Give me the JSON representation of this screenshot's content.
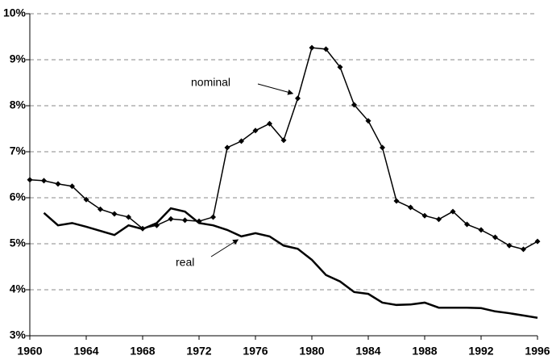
{
  "chart_data": {
    "type": "line",
    "x": [
      1960,
      1961,
      1962,
      1963,
      1964,
      1965,
      1966,
      1967,
      1968,
      1969,
      1970,
      1971,
      1972,
      1973,
      1974,
      1975,
      1976,
      1977,
      1978,
      1979,
      1980,
      1981,
      1982,
      1983,
      1984,
      1985,
      1986,
      1987,
      1988,
      1989,
      1990,
      1991,
      1992,
      1993,
      1994,
      1995,
      1996
    ],
    "series": [
      {
        "name": "nominal",
        "color": "#000000",
        "markers": true,
        "values": [
          6.39,
          6.37,
          6.3,
          6.25,
          5.96,
          5.75,
          5.65,
          5.58,
          5.33,
          5.4,
          5.54,
          5.51,
          5.49,
          5.58,
          7.09,
          7.23,
          7.46,
          7.61,
          7.25,
          8.16,
          9.26,
          9.23,
          8.84,
          8.02,
          7.67,
          7.09,
          5.93,
          5.79,
          5.61,
          5.53,
          5.7,
          5.42,
          5.3,
          5.14,
          4.96,
          4.88,
          5.05
        ]
      },
      {
        "name": "real",
        "color": "#000000",
        "markers": false,
        "values": [
          null,
          5.67,
          5.4,
          5.45,
          5.37,
          5.28,
          5.19,
          5.4,
          5.32,
          5.45,
          5.77,
          5.7,
          5.45,
          5.4,
          5.3,
          5.16,
          5.23,
          5.16,
          4.96,
          4.89,
          4.65,
          4.32,
          4.18,
          3.95,
          3.91,
          3.72,
          3.67,
          3.68,
          3.72,
          3.61,
          3.61,
          3.61,
          3.6,
          3.53,
          3.49,
          3.44,
          3.39
        ]
      }
    ],
    "xlim": [
      1960,
      1996
    ],
    "xticks": [
      1960,
      1964,
      1968,
      1972,
      1976,
      1980,
      1984,
      1988,
      1992,
      1996
    ],
    "ylim": [
      3,
      10
    ],
    "yticks": [
      {
        "value": 3,
        "label": "3%"
      },
      {
        "value": 4,
        "label": "4%"
      },
      {
        "value": 5,
        "label": "5%"
      },
      {
        "value": 6,
        "label": "6%"
      },
      {
        "value": 7,
        "label": "7%"
      },
      {
        "value": 8,
        "label": "8%"
      },
      {
        "value": 9,
        "label": "9%"
      },
      {
        "value": 10,
        "label": "10%"
      }
    ],
    "grid": true
  }
}
